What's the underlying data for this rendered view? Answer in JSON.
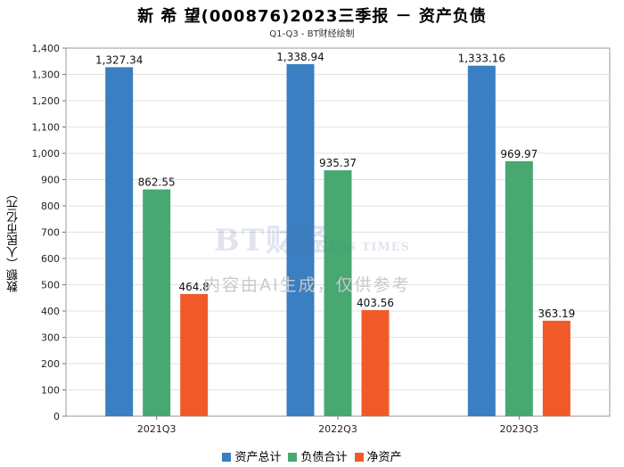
{
  "chart_data": {
    "type": "bar",
    "title": "新 希 望(000876)2023三季报 － 资产负债",
    "subtitle": "Q1-Q3 - BT财经绘制",
    "xlabel": "",
    "ylabel": "数额（人民币亿元）",
    "ylim": [
      0,
      1400
    ],
    "yticks": [
      0,
      100,
      200,
      300,
      400,
      500,
      600,
      700,
      800,
      900,
      1000,
      1100,
      1200,
      1300,
      1400
    ],
    "ytick_labels": [
      "0",
      "100",
      "200",
      "300",
      "400",
      "500",
      "600",
      "700",
      "800",
      "900",
      "1,000",
      "1,100",
      "1,200",
      "1,300",
      "1,400"
    ],
    "categories": [
      "2021Q3",
      "2022Q3",
      "2023Q3"
    ],
    "series": [
      {
        "name": "资产总计",
        "color": "#3a7fc1",
        "values": [
          1327.34,
          1338.94,
          1333.16
        ],
        "labels": [
          "1,327.34",
          "1,338.94",
          "1,333.16"
        ]
      },
      {
        "name": "负债合计",
        "color": "#47a872",
        "values": [
          862.55,
          935.37,
          969.97
        ],
        "labels": [
          "862.55",
          "935.37",
          "969.97"
        ]
      },
      {
        "name": "净资产",
        "color": "#f05a28",
        "values": [
          464.8,
          403.56,
          363.19
        ],
        "labels": [
          "464.8",
          "403.56",
          "363.19"
        ]
      }
    ],
    "grid": true,
    "legend_position": "bottom"
  },
  "watermark": {
    "logo": "BT财经",
    "sub": "BUSINESS TIMES",
    "text": "内容由AI生成，仅供参考"
  }
}
